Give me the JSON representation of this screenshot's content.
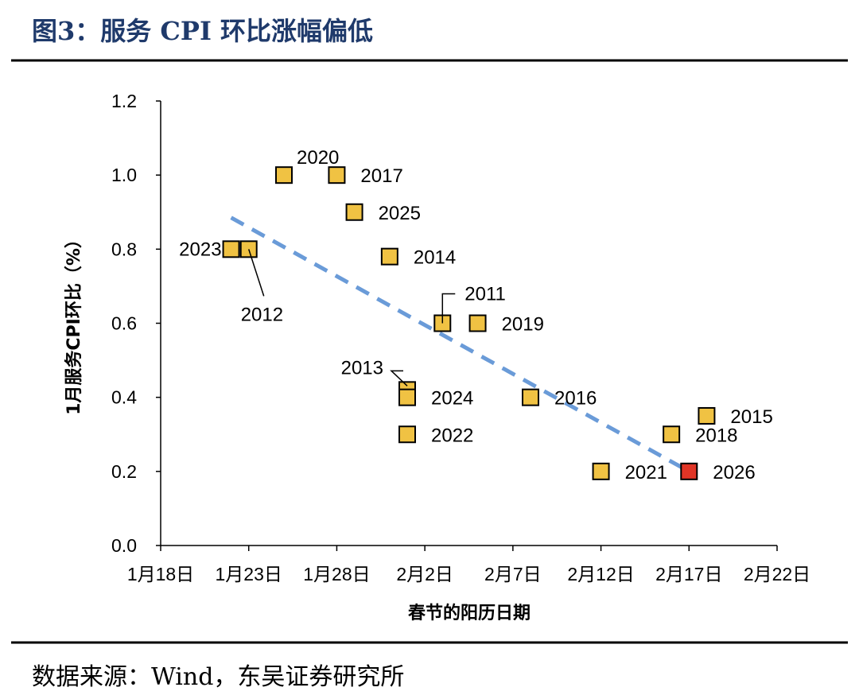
{
  "header": {
    "title": "图3：服务 CPI 环比涨幅偏低"
  },
  "footer": {
    "source": "数据来源：Wind，东吴证券研究所"
  },
  "chart_data": {
    "type": "scatter",
    "title": "",
    "xlabel": "春节的阳历日期",
    "ylabel": "1月服务CPI环比（%）",
    "ylim": [
      0,
      1.2
    ],
    "xlim": [
      "1-18",
      "2-22"
    ],
    "yticks": [
      "0.0",
      "0.2",
      "0.4",
      "0.6",
      "0.8",
      "1.0",
      "1.2"
    ],
    "xticks": [
      "1月18日",
      "1月23日",
      "1月28日",
      "2月2日",
      "2月7日",
      "2月12日",
      "2月17日",
      "2月22日"
    ],
    "grid": false,
    "marker_color": "#f0c243",
    "highlight_color": "#e03526",
    "trend_color": "#6a9bd8",
    "trendline": {
      "style": "dashed",
      "from": {
        "x": "1-22",
        "y": 0.885
      },
      "to": {
        "x": "2-17",
        "y": 0.2
      }
    },
    "points": [
      {
        "label": "2023",
        "x": "1-22",
        "y": 0.8
      },
      {
        "label": "2012",
        "x": "1-23",
        "y": 0.8
      },
      {
        "label": "2020",
        "x": "1-25",
        "y": 1.0
      },
      {
        "label": "2017",
        "x": "1-28",
        "y": 1.0
      },
      {
        "label": "2025",
        "x": "1-29",
        "y": 0.9
      },
      {
        "label": "2014",
        "x": "1-31",
        "y": 0.78
      },
      {
        "label": "2013",
        "x": "2-1",
        "y": 0.42
      },
      {
        "label": "2024",
        "x": "2-1",
        "y": 0.4
      },
      {
        "label": "2022",
        "x": "2-1",
        "y": 0.3
      },
      {
        "label": "2011",
        "x": "2-3",
        "y": 0.6
      },
      {
        "label": "2019",
        "x": "2-5",
        "y": 0.6
      },
      {
        "label": "2016",
        "x": "2-8",
        "y": 0.4
      },
      {
        "label": "2021",
        "x": "2-12",
        "y": 0.2
      },
      {
        "label": "2018",
        "x": "2-16",
        "y": 0.3
      },
      {
        "label": "2026",
        "x": "2-17",
        "y": 0.2,
        "highlight": true
      },
      {
        "label": "2015",
        "x": "2-18",
        "y": 0.35
      }
    ]
  }
}
